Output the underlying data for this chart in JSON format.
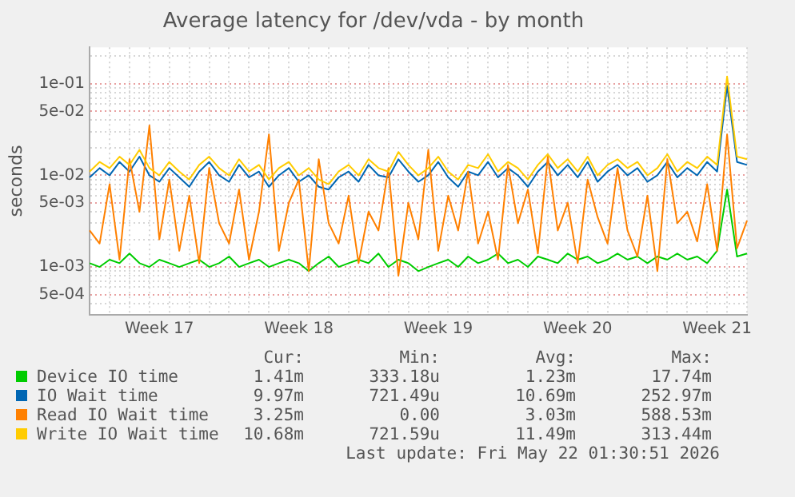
{
  "chart_data": {
    "type": "line",
    "title": "Average latency for /dev/vda - by month",
    "ylabel": "seconds",
    "log": "y",
    "grid": true,
    "legend": "bottom",
    "marker": "none",
    "line_style": "solid",
    "categories": [
      null,
      null,
      null,
      null,
      null,
      null,
      null,
      "Week 17",
      null,
      null,
      null,
      null,
      null,
      null,
      null,
      null,
      null,
      null,
      null,
      null,
      null,
      "Week 18",
      null,
      null,
      null,
      null,
      null,
      null,
      null,
      null,
      null,
      null,
      null,
      null,
      null,
      "Week 19",
      null,
      null,
      null,
      null,
      null,
      null,
      null,
      null,
      null,
      null,
      null,
      null,
      null,
      "Week 20",
      null,
      null,
      null,
      null,
      null,
      null,
      null,
      null,
      null,
      null,
      null,
      null,
      null,
      "Week 21",
      null,
      null,
      null
    ],
    "ylim": [
      0.0003,
      0.25
    ],
    "yticks": [
      {
        "value": 0.0003,
        "label": null
      },
      {
        "value": 0.0004,
        "label": null
      },
      {
        "value": 0.0005,
        "label": "5e-04"
      },
      {
        "value": 0.0006,
        "label": null
      },
      {
        "value": 0.0007,
        "label": null
      },
      {
        "value": 0.0008,
        "label": null
      },
      {
        "value": 0.0009,
        "label": null
      },
      {
        "value": 0.001,
        "label": "1e-03"
      },
      {
        "value": 0.002,
        "label": null
      },
      {
        "value": 0.003,
        "label": null
      },
      {
        "value": 0.004,
        "label": null
      },
      {
        "value": 0.005,
        "label": "5e-03"
      },
      {
        "value": 0.006,
        "label": null
      },
      {
        "value": 0.007,
        "label": null
      },
      {
        "value": 0.008,
        "label": null
      },
      {
        "value": 0.009,
        "label": null
      },
      {
        "value": 0.01,
        "label": "1e-02"
      },
      {
        "value": 0.02,
        "label": null
      },
      {
        "value": 0.03,
        "label": null
      },
      {
        "value": 0.04,
        "label": null
      },
      {
        "value": 0.05,
        "label": "5e-02"
      },
      {
        "value": 0.06,
        "label": null
      },
      {
        "value": 0.07,
        "label": null
      },
      {
        "value": 0.08,
        "label": null
      },
      {
        "value": 0.09,
        "label": null
      },
      {
        "value": 0.1,
        "label": "1e-01"
      },
      {
        "value": 0.2,
        "label": null
      }
    ],
    "series": [
      {
        "name": "Device IO time",
        "color": "#00cc00",
        "values": [
          0.0011,
          0.001,
          0.0012,
          0.0011,
          0.0014,
          0.0011,
          0.001,
          0.0012,
          0.0011,
          0.001,
          0.0011,
          0.0012,
          0.001,
          0.0011,
          0.0013,
          0.001,
          0.0011,
          0.0012,
          0.001,
          0.0011,
          0.0012,
          0.0011,
          0.0009,
          0.0011,
          0.0013,
          0.001,
          0.0011,
          0.0012,
          0.0011,
          0.0014,
          0.001,
          0.0012,
          0.0011,
          0.0009,
          0.001,
          0.0011,
          0.0012,
          0.001,
          0.0013,
          0.0011,
          0.0012,
          0.0014,
          0.0011,
          0.0012,
          0.001,
          0.0013,
          0.0012,
          0.0011,
          0.0014,
          0.0012,
          0.0013,
          0.0011,
          0.0012,
          0.0014,
          0.0012,
          0.0013,
          0.0011,
          0.0013,
          0.0012,
          0.0014,
          0.0012,
          0.0013,
          0.0011,
          0.0015,
          0.007,
          0.0013,
          0.0014
        ]
      },
      {
        "name": "IO Wait time",
        "color": "#0066b3",
        "values": [
          0.0095,
          0.012,
          0.01,
          0.014,
          0.011,
          0.016,
          0.01,
          0.0085,
          0.012,
          0.0095,
          0.0075,
          0.011,
          0.014,
          0.01,
          0.0085,
          0.013,
          0.0095,
          0.011,
          0.0075,
          0.01,
          0.012,
          0.0085,
          0.01,
          0.0075,
          0.007,
          0.0095,
          0.011,
          0.0085,
          0.013,
          0.01,
          0.0095,
          0.015,
          0.011,
          0.0085,
          0.01,
          0.014,
          0.0095,
          0.0075,
          0.011,
          0.01,
          0.014,
          0.0095,
          0.012,
          0.01,
          0.0075,
          0.011,
          0.014,
          0.01,
          0.013,
          0.0095,
          0.014,
          0.0085,
          0.011,
          0.013,
          0.01,
          0.012,
          0.0085,
          0.01,
          0.014,
          0.0095,
          0.012,
          0.01,
          0.014,
          0.011,
          0.095,
          0.014,
          0.013
        ]
      },
      {
        "name": "Read IO Wait time",
        "color": "#ff8000",
        "values": [
          0.0025,
          0.0018,
          0.008,
          0.0012,
          0.015,
          0.004,
          0.035,
          0.002,
          0.009,
          0.0015,
          0.006,
          0.0011,
          0.012,
          0.003,
          0.0018,
          0.007,
          0.0012,
          0.004,
          0.028,
          0.0015,
          0.005,
          0.009,
          0.0009,
          0.015,
          0.003,
          0.0018,
          0.006,
          0.0011,
          0.004,
          0.0025,
          0.012,
          0.0008,
          0.005,
          0.002,
          0.019,
          0.0015,
          0.006,
          0.0025,
          0.011,
          0.0018,
          0.004,
          0.0012,
          0.013,
          0.003,
          0.007,
          0.0014,
          0.016,
          0.0025,
          0.005,
          0.0011,
          0.009,
          0.0035,
          0.0018,
          0.012,
          0.0025,
          0.0013,
          0.006,
          0.0009,
          0.015,
          0.003,
          0.004,
          0.0019,
          0.008,
          0.0015,
          0.028,
          0.0016,
          0.0032
        ]
      },
      {
        "name": "Write IO Wait time",
        "color": "#ffcc00",
        "values": [
          0.011,
          0.014,
          0.012,
          0.016,
          0.013,
          0.019,
          0.012,
          0.01,
          0.014,
          0.011,
          0.009,
          0.013,
          0.016,
          0.012,
          0.01,
          0.015,
          0.011,
          0.013,
          0.009,
          0.012,
          0.014,
          0.01,
          0.012,
          0.009,
          0.008,
          0.011,
          0.013,
          0.01,
          0.015,
          0.012,
          0.011,
          0.018,
          0.013,
          0.01,
          0.012,
          0.016,
          0.011,
          0.009,
          0.013,
          0.012,
          0.017,
          0.011,
          0.014,
          0.012,
          0.009,
          0.013,
          0.017,
          0.012,
          0.015,
          0.011,
          0.016,
          0.01,
          0.013,
          0.015,
          0.012,
          0.014,
          0.01,
          0.012,
          0.017,
          0.011,
          0.014,
          0.012,
          0.016,
          0.013,
          0.12,
          0.016,
          0.015
        ]
      }
    ],
    "annotations": [
      "Cur:",
      "Min:",
      "Avg:",
      "Max:",
      "1.41m",
      "333.18u",
      "1.23m",
      "17.74m",
      "9.97m",
      "721.49u",
      "10.69m",
      "252.97m",
      "3.25m",
      "0.00",
      "3.03m",
      "588.53m",
      "10.68m",
      "721.59u",
      "11.49m",
      "313.44m",
      "Last update: Fri May 22 01:30:51 2026"
    ]
  }
}
